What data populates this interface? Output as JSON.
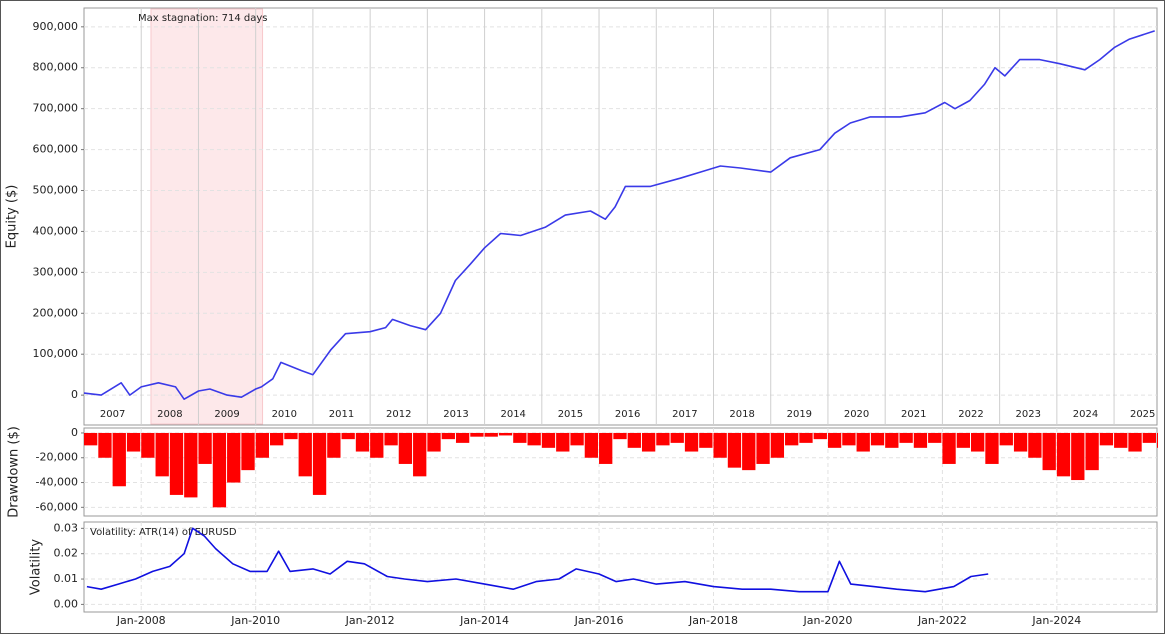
{
  "chart_data": [
    {
      "type": "line",
      "ylabel": "Equity ($)",
      "color": "#3a3ae8",
      "grid": true,
      "annotation": "Max stagnation: 714 days",
      "stagnation_span": [
        2008.17,
        2010.12
      ],
      "xlim": [
        2007,
        2025.75
      ],
      "ylim": [
        -73000,
        946000
      ],
      "yticks": [
        0,
        {
          "value": 100000,
          "label": "100,000"
        },
        {
          "value": 200000,
          "label": "200,000"
        },
        {
          "value": 300000,
          "label": "300,000"
        },
        {
          "value": 400000,
          "label": "400,000"
        },
        {
          "value": 500000,
          "label": "500,000"
        },
        {
          "value": 600000,
          "label": "600,000"
        },
        {
          "value": 700000,
          "label": "700,000"
        },
        {
          "value": 800000,
          "label": "800,000"
        },
        {
          "value": 900000,
          "label": "900,000"
        }
      ],
      "xticks": [
        2008,
        2009,
        2010,
        2011,
        2012,
        2013,
        2014,
        2015,
        2016,
        2017,
        2018,
        2019,
        2020,
        2021,
        2022,
        2023,
        2024,
        2025
      ],
      "categories": [
        "2007",
        "2008",
        "2009",
        "2010",
        "2011",
        "2012",
        "2013",
        "2014",
        "2015",
        "2016",
        "2017",
        "2018",
        "2019",
        "2020",
        "2021",
        "2022",
        "2023",
        "2024",
        "2025"
      ],
      "x": [
        2007.0,
        2007.3,
        2007.65,
        2007.8,
        2008.0,
        2008.3,
        2008.6,
        2008.75,
        2009.0,
        2009.2,
        2009.5,
        2009.75,
        2010.0,
        2010.1,
        2010.3,
        2010.44,
        2010.8,
        2011.0,
        2011.31,
        2011.57,
        2012.0,
        2012.27,
        2012.39,
        2012.7,
        2012.97,
        2013.23,
        2013.49,
        2013.75,
        2014.0,
        2014.28,
        2014.63,
        2015.06,
        2015.41,
        2015.85,
        2016.11,
        2016.28,
        2016.46,
        2016.9,
        2017.42,
        2017.77,
        2018.12,
        2018.47,
        2019.0,
        2019.34,
        2019.86,
        2020.12,
        2020.39,
        2020.74,
        2021.26,
        2021.7,
        2022.04,
        2022.22,
        2022.48,
        2022.74,
        2022.92,
        2023.09,
        2023.35,
        2023.7,
        2024.05,
        2024.49,
        2024.75,
        2025.01,
        2025.27,
        2025.71
      ],
      "values": [
        5000,
        0,
        30000,
        0,
        20000,
        30000,
        20000,
        -10000,
        10000,
        15000,
        0,
        -5000,
        15000,
        20000,
        40000,
        80000,
        60000,
        50000,
        110000,
        150000,
        155000,
        165000,
        185000,
        170000,
        160000,
        200000,
        280000,
        320000,
        360000,
        395000,
        390000,
        410000,
        440000,
        450000,
        430000,
        460000,
        510000,
        510000,
        530000,
        545000,
        560000,
        555000,
        545000,
        580000,
        600000,
        640000,
        665000,
        680000,
        680000,
        690000,
        715000,
        700000,
        720000,
        760000,
        800000,
        780000,
        820000,
        820000,
        810000,
        795000,
        820000,
        850000,
        870000,
        890000
      ]
    },
    {
      "type": "bar",
      "ylabel": "Drawdown ($)",
      "color": "#ff0000",
      "grid": true,
      "xlim": [
        2007,
        2025.75
      ],
      "ylim": [
        -67000,
        4000
      ],
      "yticks": [
        {
          "value": -60000,
          "label": "-60,000"
        },
        {
          "value": -40000,
          "label": "-40,000"
        },
        {
          "value": -20000,
          "label": "-20,000"
        },
        0
      ],
      "x": [
        2007.0,
        2007.25,
        2007.5,
        2007.75,
        2008.0,
        2008.25,
        2008.5,
        2008.75,
        2009.0,
        2009.25,
        2009.5,
        2009.75,
        2010.0,
        2010.25,
        2010.5,
        2010.75,
        2011.0,
        2011.25,
        2011.5,
        2011.75,
        2012.0,
        2012.25,
        2012.5,
        2012.75,
        2013.0,
        2013.25,
        2013.5,
        2013.75,
        2014.0,
        2014.25,
        2014.5,
        2014.75,
        2015.0,
        2015.25,
        2015.5,
        2015.75,
        2016.0,
        2016.25,
        2016.5,
        2016.75,
        2017.0,
        2017.25,
        2017.5,
        2017.75,
        2018.0,
        2018.25,
        2018.5,
        2018.75,
        2019.0,
        2019.25,
        2019.5,
        2019.75,
        2020.0,
        2020.25,
        2020.5,
        2020.75,
        2021.0,
        2021.25,
        2021.5,
        2021.75,
        2022.0,
        2022.25,
        2022.5,
        2022.75,
        2023.0,
        2023.25,
        2023.5,
        2023.75,
        2024.0,
        2024.25,
        2024.5,
        2024.75,
        2025.0,
        2025.25,
        2025.5,
        2025.75
      ],
      "values": [
        -10000,
        -20000,
        -43000,
        -15000,
        -20000,
        -35000,
        -50000,
        -52000,
        -25000,
        -60000,
        -40000,
        -30000,
        -20000,
        -10000,
        -5000,
        -35000,
        -50000,
        -20000,
        -5000,
        -15000,
        -20000,
        -10000,
        -25000,
        -35000,
        -15000,
        -5000,
        -8000,
        -3000,
        -3000,
        -2000,
        -8000,
        -10000,
        -12000,
        -15000,
        -10000,
        -20000,
        -25000,
        -5000,
        -12000,
        -15000,
        -10000,
        -8000,
        -15000,
        -12000,
        -20000,
        -28000,
        -30000,
        -25000,
        -20000,
        -10000,
        -8000,
        -5000,
        -12000,
        -10000,
        -15000,
        -10000,
        -12000,
        -8000,
        -12000,
        -8000,
        -25000,
        -12000,
        -15000,
        -25000,
        -10000,
        -15000,
        -20000,
        -30000,
        -35000,
        -38000,
        -30000,
        -10000,
        -12000,
        -15000,
        -8000,
        -12000
      ]
    },
    {
      "type": "line",
      "ylabel": "Volatility",
      "color": "#1010e0",
      "grid": true,
      "annotation": "Volatility: ATR(14) of EURUSD",
      "xlim": [
        2007,
        2025.75
      ],
      "ylim": [
        -0.003,
        0.0325
      ],
      "yticks": [
        {
          "value": 0,
          "label": "0.00"
        },
        0.01,
        0.02,
        0.03
      ],
      "xticks": [
        {
          "value": 2008,
          "label": "Jan-2008"
        },
        {
          "value": 2010,
          "label": "Jan-2010"
        },
        {
          "value": 2012,
          "label": "Jan-2012"
        },
        {
          "value": 2014,
          "label": "Jan-2014"
        },
        {
          "value": 2016,
          "label": "Jan-2016"
        },
        {
          "value": 2018,
          "label": "Jan-2018"
        },
        {
          "value": 2020,
          "label": "Jan-2020"
        },
        {
          "value": 2022,
          "label": "Jan-2022"
        },
        {
          "value": 2024,
          "label": "Jan-2024"
        }
      ],
      "x": [
        2007.05,
        2007.3,
        2007.6,
        2007.9,
        2008.2,
        2008.5,
        2008.75,
        2008.9,
        2009.1,
        2009.3,
        2009.6,
        2009.9,
        2010.2,
        2010.4,
        2010.6,
        2011.0,
        2011.3,
        2011.6,
        2011.9,
        2012.3,
        2012.6,
        2013.0,
        2013.5,
        2014.0,
        2014.5,
        2014.9,
        2015.3,
        2015.6,
        2016.0,
        2016.3,
        2016.6,
        2017.0,
        2017.5,
        2018.0,
        2018.5,
        2019.0,
        2019.5,
        2020.0,
        2020.2,
        2020.4,
        2020.8,
        2021.2,
        2021.7,
        2022.2,
        2022.5,
        2022.8
      ],
      "values": [
        0.007,
        0.006,
        0.008,
        0.01,
        0.013,
        0.015,
        0.02,
        0.03,
        0.027,
        0.022,
        0.016,
        0.013,
        0.013,
        0.021,
        0.013,
        0.014,
        0.012,
        0.017,
        0.016,
        0.011,
        0.01,
        0.009,
        0.01,
        0.008,
        0.006,
        0.009,
        0.01,
        0.014,
        0.012,
        0.009,
        0.01,
        0.008,
        0.009,
        0.007,
        0.006,
        0.006,
        0.005,
        0.005,
        0.017,
        0.008,
        0.007,
        0.006,
        0.005,
        0.007,
        0.011,
        0.012
      ]
    }
  ]
}
